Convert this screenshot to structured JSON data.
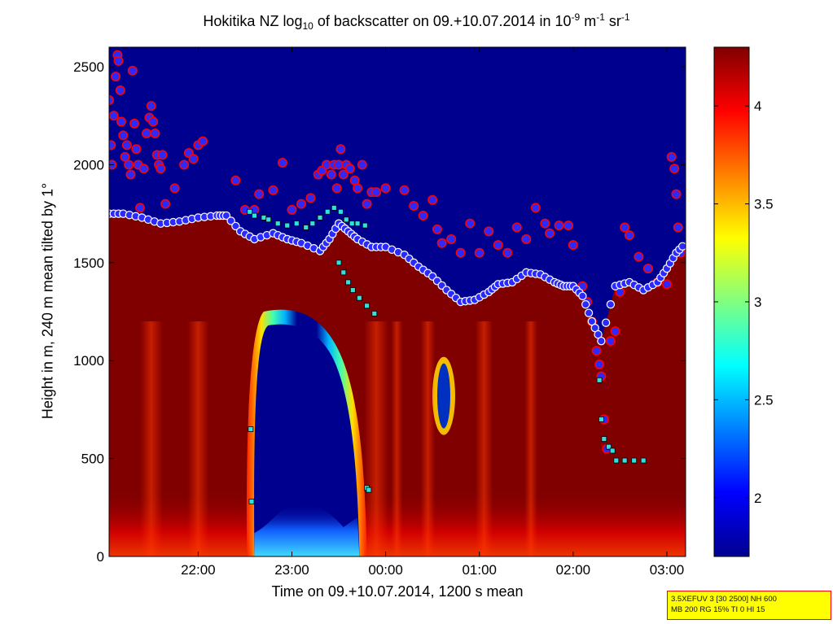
{
  "title": {
    "prefix": "Hokitika NZ log",
    "sub": "10",
    "middle": " of backscatter on 09.+10.07.2014 in 10",
    "sup1": "-9",
    "unit1": " m",
    "sup2": "-1",
    "unit2": " sr",
    "sup3": "-1"
  },
  "info_box": {
    "line1": "3.5XEFUV 3 [30 2500] NH 600",
    "line2": "MB 200 RG 15% TI 0 HI 15"
  },
  "colors": {
    "low": "#00008f",
    "high": "#800000",
    "cloud_base_marker_fill": "#2a2aff",
    "cloud_base_marker_edge": "#ff0000",
    "secondary_marker_fill": "#33e0e0"
  },
  "chart_data": {
    "type": "heatmap",
    "xlabel": "Time on 09.+10.07.2014, 1200 s mean",
    "ylabel": "Height in m, 240 m mean tilted by 1°",
    "x_unit": "hours since 00:00 on 10.07.2014",
    "x_ticks": [
      {
        "value": -2,
        "label": "22:00"
      },
      {
        "value": -1,
        "label": "23:00"
      },
      {
        "value": 0,
        "label": "00:00"
      },
      {
        "value": 1,
        "label": "01:00"
      },
      {
        "value": 2,
        "label": "02:00"
      },
      {
        "value": 3,
        "label": "03:00"
      }
    ],
    "xlim": [
      -2.95,
      3.2
    ],
    "ylim": [
      0,
      2600
    ],
    "y_ticks": [
      0,
      500,
      1000,
      1500,
      2000,
      2500
    ],
    "colorbar": {
      "range": [
        1.7,
        4.3
      ],
      "ticks": [
        {
          "value": 2,
          "label": "2"
        },
        {
          "value": 2.5,
          "label": "2.5"
        },
        {
          "value": 3,
          "label": "3"
        },
        {
          "value": 3.5,
          "label": "3.5"
        },
        {
          "value": 4,
          "label": "4"
        }
      ],
      "colormap": "jet"
    },
    "layer_top": [
      [
        -2.95,
        1750
      ],
      [
        -2.8,
        1750
      ],
      [
        -2.6,
        1730
      ],
      [
        -2.4,
        1700
      ],
      [
        -2.2,
        1710
      ],
      [
        -2.0,
        1730
      ],
      [
        -1.8,
        1740
      ],
      [
        -1.7,
        1740
      ],
      [
        -1.55,
        1660
      ],
      [
        -1.4,
        1620
      ],
      [
        -1.2,
        1650
      ],
      [
        -1.05,
        1620
      ],
      [
        -0.9,
        1600
      ],
      [
        -0.7,
        1560
      ],
      [
        -0.6,
        1620
      ],
      [
        -0.5,
        1700
      ],
      [
        -0.4,
        1660
      ],
      [
        -0.3,
        1620
      ],
      [
        -0.15,
        1580
      ],
      [
        0.0,
        1580
      ],
      [
        0.2,
        1540
      ],
      [
        0.35,
        1480
      ],
      [
        0.5,
        1430
      ],
      [
        0.65,
        1360
      ],
      [
        0.8,
        1300
      ],
      [
        0.95,
        1310
      ],
      [
        1.1,
        1350
      ],
      [
        1.2,
        1390
      ],
      [
        1.35,
        1400
      ],
      [
        1.5,
        1450
      ],
      [
        1.65,
        1440
      ],
      [
        1.8,
        1400
      ],
      [
        1.9,
        1380
      ],
      [
        2.0,
        1380
      ],
      [
        2.1,
        1330
      ],
      [
        2.2,
        1200
      ],
      [
        2.3,
        1100
      ],
      [
        2.45,
        1380
      ],
      [
        2.6,
        1400
      ],
      [
        2.75,
        1360
      ],
      [
        2.9,
        1400
      ],
      [
        3.0,
        1470
      ],
      [
        3.1,
        1550
      ],
      [
        3.2,
        1600
      ]
    ],
    "cloud_base_points": [
      [
        -2.95,
        2330
      ],
      [
        -2.93,
        2100
      ],
      [
        -2.92,
        2000
      ],
      [
        -2.9,
        2250
      ],
      [
        -2.88,
        2450
      ],
      [
        -2.86,
        2560
      ],
      [
        -2.85,
        2530
      ],
      [
        -2.83,
        2380
      ],
      [
        -2.82,
        2220
      ],
      [
        -2.8,
        2150
      ],
      [
        -2.78,
        2040
      ],
      [
        -2.76,
        2100
      ],
      [
        -2.74,
        2000
      ],
      [
        -2.72,
        1950
      ],
      [
        -2.7,
        2480
      ],
      [
        -2.68,
        2210
      ],
      [
        -2.66,
        2080
      ],
      [
        -2.64,
        2000
      ],
      [
        -2.62,
        1780
      ],
      [
        -2.58,
        1980
      ],
      [
        -2.55,
        2160
      ],
      [
        -2.52,
        2240
      ],
      [
        -2.5,
        2300
      ],
      [
        -2.48,
        2220
      ],
      [
        -2.46,
        2160
      ],
      [
        -2.44,
        2050
      ],
      [
        -2.42,
        2000
      ],
      [
        -2.4,
        1980
      ],
      [
        -2.38,
        2050
      ],
      [
        -2.35,
        1800
      ],
      [
        -2.25,
        1880
      ],
      [
        -2.15,
        2000
      ],
      [
        -2.1,
        2060
      ],
      [
        -2.05,
        2030
      ],
      [
        -2.0,
        2100
      ],
      [
        -1.95,
        2120
      ],
      [
        -1.6,
        1920
      ],
      [
        -1.5,
        1770
      ],
      [
        -1.4,
        1770
      ],
      [
        -1.35,
        1850
      ],
      [
        -1.2,
        1870
      ],
      [
        -1.1,
        2010
      ],
      [
        -1.0,
        1770
      ],
      [
        -0.9,
        1800
      ],
      [
        -0.8,
        1830
      ],
      [
        -0.72,
        1950
      ],
      [
        -0.68,
        1970
      ],
      [
        -0.63,
        2000
      ],
      [
        -0.58,
        1950
      ],
      [
        -0.55,
        2000
      ],
      [
        -0.52,
        1880
      ],
      [
        -0.5,
        2000
      ],
      [
        -0.48,
        2080
      ],
      [
        -0.45,
        1950
      ],
      [
        -0.42,
        2000
      ],
      [
        -0.38,
        1980
      ],
      [
        -0.33,
        1920
      ],
      [
        -0.3,
        1880
      ],
      [
        -0.25,
        2000
      ],
      [
        -0.2,
        1800
      ],
      [
        -0.15,
        1860
      ],
      [
        -0.1,
        1860
      ],
      [
        0.0,
        1880
      ],
      [
        0.2,
        1870
      ],
      [
        0.3,
        1790
      ],
      [
        0.4,
        1740
      ],
      [
        0.5,
        1820
      ],
      [
        0.55,
        1670
      ],
      [
        0.6,
        1600
      ],
      [
        0.7,
        1620
      ],
      [
        0.8,
        1550
      ],
      [
        0.9,
        1700
      ],
      [
        1.0,
        1550
      ],
      [
        1.1,
        1660
      ],
      [
        1.2,
        1590
      ],
      [
        1.3,
        1550
      ],
      [
        1.4,
        1680
      ],
      [
        1.5,
        1620
      ],
      [
        1.6,
        1780
      ],
      [
        1.7,
        1700
      ],
      [
        1.75,
        1650
      ],
      [
        1.85,
        1690
      ],
      [
        1.95,
        1690
      ],
      [
        2.0,
        1590
      ],
      [
        2.1,
        1380
      ],
      [
        2.15,
        1300
      ],
      [
        2.2,
        1200
      ],
      [
        2.25,
        1050
      ],
      [
        2.28,
        980
      ],
      [
        2.3,
        920
      ],
      [
        2.33,
        700
      ],
      [
        2.36,
        550
      ],
      [
        2.4,
        1100
      ],
      [
        2.45,
        1150
      ],
      [
        2.5,
        1350
      ],
      [
        2.55,
        1680
      ],
      [
        2.6,
        1640
      ],
      [
        2.7,
        1530
      ],
      [
        2.8,
        1470
      ],
      [
        2.9,
        1400
      ],
      [
        3.0,
        1390
      ],
      [
        3.05,
        2040
      ],
      [
        3.08,
        1980
      ],
      [
        3.1,
        1850
      ],
      [
        3.12,
        1680
      ],
      [
        3.15,
        1550
      ]
    ],
    "secondary_points": [
      [
        -1.45,
        1760
      ],
      [
        -1.4,
        1740
      ],
      [
        -1.3,
        1730
      ],
      [
        -1.25,
        1720
      ],
      [
        -1.15,
        1700
      ],
      [
        -1.05,
        1690
      ],
      [
        -0.95,
        1700
      ],
      [
        -0.85,
        1680
      ],
      [
        -0.78,
        1700
      ],
      [
        -0.7,
        1730
      ],
      [
        -0.62,
        1760
      ],
      [
        -0.55,
        1780
      ],
      [
        -0.48,
        1760
      ],
      [
        -0.42,
        1720
      ],
      [
        -0.36,
        1700
      ],
      [
        -0.3,
        1700
      ],
      [
        -0.22,
        1690
      ],
      [
        -0.5,
        1500
      ],
      [
        -0.45,
        1450
      ],
      [
        -0.4,
        1400
      ],
      [
        -0.35,
        1360
      ],
      [
        -0.28,
        1320
      ],
      [
        -0.2,
        1280
      ],
      [
        -0.12,
        1240
      ],
      [
        -1.44,
        650
      ],
      [
        -1.43,
        280
      ],
      [
        -0.2,
        350
      ],
      [
        -0.18,
        340
      ],
      [
        2.28,
        900
      ],
      [
        2.3,
        700
      ],
      [
        2.33,
        600
      ],
      [
        2.38,
        560
      ],
      [
        2.42,
        540
      ],
      [
        2.46,
        490
      ],
      [
        2.55,
        490
      ],
      [
        2.65,
        490
      ],
      [
        2.75,
        490
      ]
    ]
  }
}
